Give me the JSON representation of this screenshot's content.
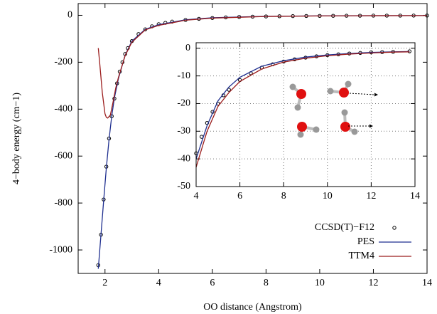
{
  "chart_data": [
    {
      "type": "line",
      "x_label": "OO distance (Angstrom)",
      "y_label": "4−body energy (cm−1)",
      "xlim": [
        1,
        14
      ],
      "ylim": [
        -1100,
        50
      ],
      "xticks": [
        2,
        4,
        6,
        8,
        10,
        12,
        14
      ],
      "yticks": [
        -1000,
        -800,
        -600,
        -400,
        -200,
        0
      ],
      "grid": false,
      "legend": "lower right",
      "series": [
        {
          "name": "CCSD(T)−F12",
          "style": "points",
          "color": "#000000",
          "x": [
            1.75,
            1.85,
            1.95,
            2.05,
            2.15,
            2.25,
            2.35,
            2.45,
            2.55,
            2.65,
            2.75,
            2.85,
            3.0,
            3.25,
            3.5,
            3.75,
            4.0,
            4.25,
            4.5,
            5.0,
            5.5,
            6.0,
            6.5,
            7.0,
            7.5,
            8.0,
            8.5,
            9.0,
            9.5,
            10.0,
            10.5,
            11.0,
            11.5,
            12.0,
            12.5,
            13.0,
            13.5,
            14.0
          ],
          "values": [
            -1065,
            -935,
            -785,
            -645,
            -525,
            -430,
            -355,
            -290,
            -240,
            -200,
            -165,
            -140,
            -110,
            -80,
            -60,
            -47,
            -38,
            -32,
            -27,
            -20,
            -15,
            -11.5,
            -9,
            -7,
            -5.8,
            -4.8,
            -4,
            -3.4,
            -2.9,
            -2.5,
            -2.2,
            -1.9,
            -1.7,
            -1.5,
            -1.4,
            -1.3,
            -1.2,
            -1
          ]
        },
        {
          "name": "PES",
          "style": "line",
          "color": "#1f2f8f",
          "x": [
            1.75,
            1.85,
            1.95,
            2.05,
            2.15,
            2.25,
            2.35,
            2.5,
            2.75,
            3.0,
            3.5,
            4.0,
            5.0,
            6.0,
            8.0,
            10.0,
            12.0,
            14.0
          ],
          "values": [
            -1080,
            -935,
            -790,
            -650,
            -530,
            -430,
            -352,
            -270,
            -170,
            -110,
            -60,
            -40,
            -19,
            -10.5,
            -4.5,
            -2.4,
            -1.5,
            -1.1
          ]
        },
        {
          "name": "TTM4",
          "style": "line",
          "color": "#9b1c1c",
          "x": [
            1.75,
            1.8,
            1.9,
            2.0,
            2.05,
            2.1,
            2.2,
            2.3,
            2.4,
            2.5,
            2.75,
            3.0,
            3.5,
            4.0,
            5.0,
            6.0,
            8.0,
            10.0,
            12.0,
            14.0
          ],
          "values": [
            -140,
            -200,
            -330,
            -420,
            -435,
            -438,
            -425,
            -370,
            -310,
            -265,
            -172,
            -115,
            -62,
            -43,
            -21,
            -12,
            -5,
            -2.7,
            -1.7,
            -1.2
          ]
        }
      ]
    },
    {
      "type": "line",
      "xlim": [
        4,
        14
      ],
      "ylim": [
        -50,
        2
      ],
      "xticks": [
        4,
        6,
        8,
        10,
        12,
        14
      ],
      "yticks": [
        -50,
        -40,
        -30,
        -20,
        -10,
        0
      ],
      "grid": true,
      "series": [
        {
          "style": "points",
          "color": "#000000",
          "x": [
            4.0,
            4.25,
            4.5,
            4.75,
            5.0,
            5.25,
            5.5,
            6.0,
            6.5,
            7.0,
            7.5,
            8.0,
            8.5,
            9.0,
            9.5,
            10.0,
            10.5,
            11.0,
            11.5,
            12.0,
            12.5,
            13.0,
            13.75
          ],
          "values": [
            -38,
            -32,
            -27,
            -23,
            -20,
            -17,
            -15,
            -11.5,
            -9,
            -7,
            -5.8,
            -4.8,
            -4,
            -3.4,
            -2.9,
            -2.5,
            -2.2,
            -1.9,
            -1.7,
            -1.5,
            -1.4,
            -1.3,
            -1.1
          ]
        },
        {
          "style": "line",
          "color": "#1f2f8f",
          "x": [
            4.0,
            4.5,
            5.0,
            5.5,
            6.0,
            7.0,
            8.0,
            9.0,
            10.0,
            11.0,
            12.0,
            13.0,
            13.75
          ],
          "values": [
            -40,
            -28,
            -19,
            -14,
            -10.5,
            -6.5,
            -4.5,
            -3.2,
            -2.4,
            -1.9,
            -1.5,
            -1.3,
            -1.2
          ]
        },
        {
          "style": "line",
          "color": "#9b1c1c",
          "x": [
            4.0,
            4.5,
            5.0,
            5.5,
            6.0,
            7.0,
            8.0,
            9.0,
            10.0,
            11.0,
            12.0,
            13.0,
            13.75
          ],
          "values": [
            -43,
            -30,
            -21,
            -16,
            -12,
            -7.5,
            -5,
            -3.6,
            -2.7,
            -2.1,
            -1.7,
            -1.4,
            -1.3
          ]
        }
      ]
    }
  ]
}
